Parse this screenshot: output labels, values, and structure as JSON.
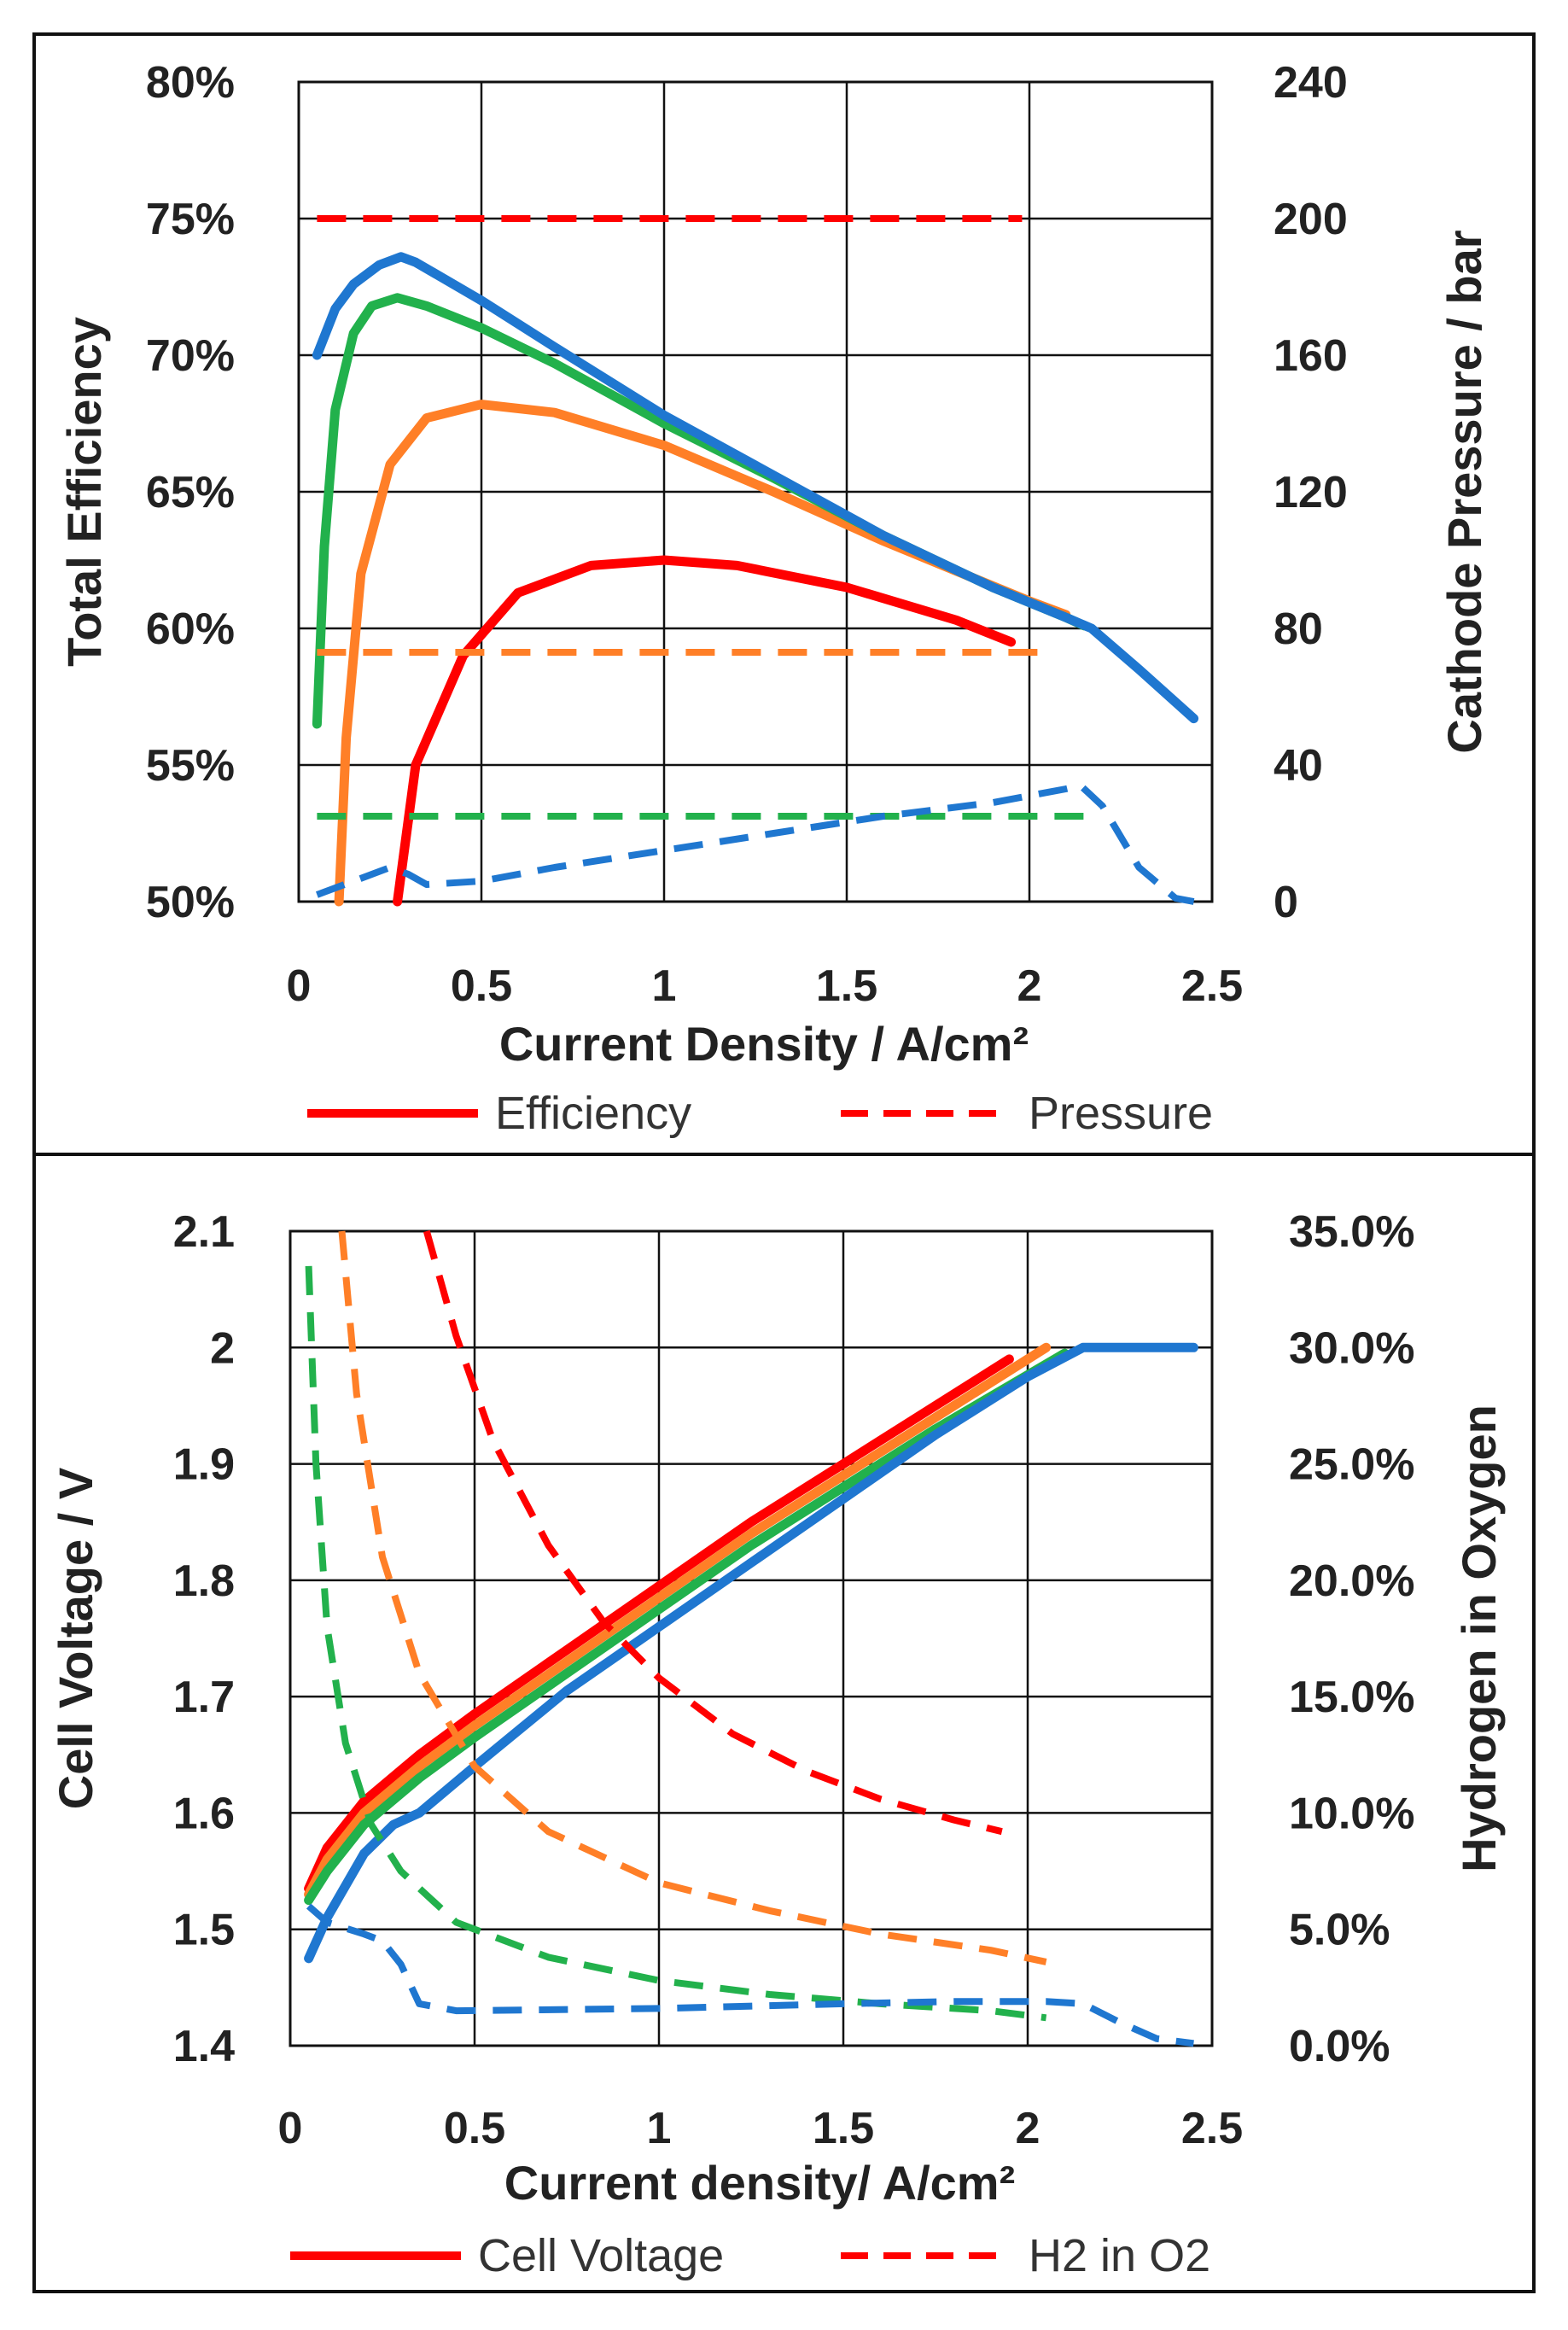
{
  "colors": {
    "red": "#ff0000",
    "orange": "#ff7f27",
    "green": "#22b14c",
    "blue": "#1f77d0",
    "frame": "#111111",
    "grid": "#111111"
  },
  "chart_data": [
    {
      "type": "line",
      "xlabel": "Current Density / A/cm²",
      "ylabel": "Total Efficiency",
      "y2label": "Cathode Pressure / bar",
      "xlim": [
        0,
        2.5
      ],
      "ylim": [
        50,
        80
      ],
      "y2lim": [
        0,
        240
      ],
      "xticks": [
        "0",
        "0.5",
        "1",
        "1.5",
        "2",
        "2.5"
      ],
      "yticks": [
        "50%",
        "55%",
        "60%",
        "65%",
        "70%",
        "75%",
        "80%"
      ],
      "y2ticks": [
        "0",
        "40",
        "80",
        "120",
        "160",
        "200",
        "240"
      ],
      "grid": true,
      "legend": {
        "position": "bottom",
        "solid_label": "Efficiency",
        "dashed_label": "Pressure"
      },
      "series": [
        {
          "axis": "left",
          "style": "solid",
          "color": "red",
          "points": [
            [
              0.27,
              50
            ],
            [
              0.32,
              55
            ],
            [
              0.45,
              59
            ],
            [
              0.6,
              61.3
            ],
            [
              0.8,
              62.3
            ],
            [
              1.0,
              62.5
            ],
            [
              1.2,
              62.3
            ],
            [
              1.5,
              61.5
            ],
            [
              1.8,
              60.3
            ],
            [
              1.95,
              59.5
            ]
          ]
        },
        {
          "axis": "left",
          "style": "solid",
          "color": "orange",
          "points": [
            [
              0.11,
              50
            ],
            [
              0.13,
              56
            ],
            [
              0.17,
              62
            ],
            [
              0.25,
              66
            ],
            [
              0.35,
              67.7
            ],
            [
              0.5,
              68.2
            ],
            [
              0.7,
              67.9
            ],
            [
              1.0,
              66.7
            ],
            [
              1.3,
              65
            ],
            [
              1.6,
              63.2
            ],
            [
              2.0,
              61.0
            ],
            [
              2.1,
              60.5
            ]
          ]
        },
        {
          "axis": "left",
          "style": "solid",
          "color": "green",
          "points": [
            [
              0.05,
              56.5
            ],
            [
              0.07,
              63
            ],
            [
              0.1,
              68
            ],
            [
              0.15,
              70.8
            ],
            [
              0.2,
              71.8
            ],
            [
              0.27,
              72.1
            ],
            [
              0.35,
              71.8
            ],
            [
              0.5,
              71.0
            ],
            [
              0.7,
              69.7
            ],
            [
              1.0,
              67.5
            ],
            [
              1.3,
              65.5
            ],
            [
              1.6,
              63.4
            ],
            [
              1.9,
              61.5
            ],
            [
              2.1,
              60.4
            ],
            [
              2.15,
              60.1
            ]
          ]
        },
        {
          "axis": "left",
          "style": "solid",
          "color": "blue",
          "points": [
            [
              0.05,
              70
            ],
            [
              0.1,
              71.7
            ],
            [
              0.15,
              72.6
            ],
            [
              0.22,
              73.3
            ],
            [
              0.28,
              73.6
            ],
            [
              0.32,
              73.4
            ],
            [
              0.5,
              72
            ],
            [
              0.7,
              70.3
            ],
            [
              1.0,
              67.8
            ],
            [
              1.3,
              65.6
            ],
            [
              1.6,
              63.4
            ],
            [
              1.9,
              61.5
            ],
            [
              2.1,
              60.4
            ],
            [
              2.17,
              60
            ],
            [
              2.3,
              58.5
            ],
            [
              2.45,
              56.7
            ]
          ]
        },
        {
          "axis": "right",
          "style": "dashed",
          "color": "red",
          "points": [
            [
              0.05,
              200
            ],
            [
              1.98,
              200
            ]
          ]
        },
        {
          "axis": "right",
          "style": "dashed",
          "color": "orange",
          "points": [
            [
              0.05,
              73
            ],
            [
              2.05,
              73
            ]
          ]
        },
        {
          "axis": "right",
          "style": "dashed",
          "color": "green",
          "points": [
            [
              0.05,
              25
            ],
            [
              2.15,
              25
            ]
          ]
        },
        {
          "axis": "right",
          "style": "dashed",
          "color": "blue",
          "points": [
            [
              0.05,
              2
            ],
            [
              0.15,
              6
            ],
            [
              0.25,
              10
            ],
            [
              0.3,
              8
            ],
            [
              0.35,
              5
            ],
            [
              0.5,
              6
            ],
            [
              0.7,
              10
            ],
            [
              1.0,
              15
            ],
            [
              1.3,
              20
            ],
            [
              1.6,
              25
            ],
            [
              1.9,
              29
            ],
            [
              2.1,
              33
            ],
            [
              2.14,
              34
            ],
            [
              2.2,
              28
            ],
            [
              2.3,
              10
            ],
            [
              2.4,
              1
            ],
            [
              2.45,
              0
            ]
          ]
        }
      ]
    },
    {
      "type": "line",
      "xlabel": "Current density/ A/cm²",
      "ylabel": "Cell Voltage / V",
      "y2label": "Hydrogen in Oxygen",
      "xlim": [
        0,
        2.5
      ],
      "ylim": [
        1.4,
        2.1
      ],
      "y2lim": [
        0,
        35
      ],
      "xticks": [
        "0",
        "0.5",
        "1",
        "1.5",
        "2",
        "2.5"
      ],
      "yticks": [
        "1.4",
        "1.5",
        "1.6",
        "1.7",
        "1.8",
        "1.9",
        "2",
        "2.1"
      ],
      "y2ticks": [
        "0.0%",
        "5.0%",
        "10.0%",
        "15.0%",
        "20.0%",
        "25.0%",
        "30.0%",
        "35.0%"
      ],
      "grid": true,
      "legend": {
        "position": "bottom",
        "solid_label": "Cell Voltage",
        "dashed_label": "H2 in O2"
      },
      "series": [
        {
          "axis": "left",
          "style": "solid",
          "color": "red",
          "points": [
            [
              0.05,
              1.535
            ],
            [
              0.1,
              1.57
            ],
            [
              0.2,
              1.61
            ],
            [
              0.35,
              1.65
            ],
            [
              0.5,
              1.685
            ],
            [
              0.75,
              1.74
            ],
            [
              1.0,
              1.795
            ],
            [
              1.25,
              1.85
            ],
            [
              1.5,
              1.9
            ],
            [
              1.75,
              1.95
            ],
            [
              1.95,
              1.99
            ]
          ]
        },
        {
          "axis": "left",
          "style": "solid",
          "color": "orange",
          "points": [
            [
              0.05,
              1.53
            ],
            [
              0.1,
              1.56
            ],
            [
              0.2,
              1.6
            ],
            [
              0.35,
              1.64
            ],
            [
              0.5,
              1.675
            ],
            [
              0.75,
              1.73
            ],
            [
              1.0,
              1.785
            ],
            [
              1.25,
              1.84
            ],
            [
              1.5,
              1.89
            ],
            [
              1.75,
              1.94
            ],
            [
              2.05,
              2.0
            ]
          ]
        },
        {
          "axis": "left",
          "style": "solid",
          "color": "green",
          "points": [
            [
              0.05,
              1.525
            ],
            [
              0.1,
              1.55
            ],
            [
              0.2,
              1.59
            ],
            [
              0.35,
              1.63
            ],
            [
              0.5,
              1.665
            ],
            [
              0.75,
              1.72
            ],
            [
              1.0,
              1.775
            ],
            [
              1.25,
              1.83
            ],
            [
              1.5,
              1.88
            ],
            [
              1.75,
              1.93
            ],
            [
              2.1,
              1.995
            ]
          ]
        },
        {
          "axis": "left",
          "style": "solid",
          "color": "blue",
          "points": [
            [
              0.05,
              1.475
            ],
            [
              0.1,
              1.51
            ],
            [
              0.2,
              1.565
            ],
            [
              0.28,
              1.59
            ],
            [
              0.35,
              1.6
            ],
            [
              0.5,
              1.64
            ],
            [
              0.75,
              1.705
            ],
            [
              1.0,
              1.76
            ],
            [
              1.25,
              1.815
            ],
            [
              1.5,
              1.87
            ],
            [
              1.75,
              1.925
            ],
            [
              2.0,
              1.975
            ],
            [
              2.15,
              2.0
            ],
            [
              2.45,
              2.0
            ]
          ]
        },
        {
          "axis": "right",
          "style": "dashed",
          "color": "red",
          "points": [
            [
              0.37,
              35
            ],
            [
              0.45,
              30.5
            ],
            [
              0.55,
              26
            ],
            [
              0.7,
              21.5
            ],
            [
              0.85,
              18.2
            ],
            [
              1.0,
              15.8
            ],
            [
              1.2,
              13.4
            ],
            [
              1.4,
              11.8
            ],
            [
              1.6,
              10.6
            ],
            [
              1.8,
              9.7
            ],
            [
              1.93,
              9.2
            ]
          ]
        },
        {
          "axis": "right",
          "style": "dashed",
          "color": "orange",
          "points": [
            [
              0.14,
              35
            ],
            [
              0.18,
              28
            ],
            [
              0.25,
              21
            ],
            [
              0.35,
              16
            ],
            [
              0.5,
              12
            ],
            [
              0.7,
              9.2
            ],
            [
              1.0,
              7
            ],
            [
              1.3,
              5.8
            ],
            [
              1.6,
              4.8
            ],
            [
              1.9,
              4.1
            ],
            [
              2.05,
              3.6
            ]
          ]
        },
        {
          "axis": "right",
          "style": "dashed",
          "color": "green",
          "points": [
            [
              0.05,
              33.5
            ],
            [
              0.07,
              25
            ],
            [
              0.1,
              18
            ],
            [
              0.15,
              13
            ],
            [
              0.22,
              9.5
            ],
            [
              0.3,
              7.5
            ],
            [
              0.45,
              5.3
            ],
            [
              0.7,
              3.8
            ],
            [
              1.0,
              2.8
            ],
            [
              1.3,
              2.2
            ],
            [
              1.6,
              1.8
            ],
            [
              1.9,
              1.5
            ],
            [
              2.05,
              1.2
            ]
          ]
        },
        {
          "axis": "right",
          "style": "dashed",
          "color": "blue",
          "points": [
            [
              0.05,
              6
            ],
            [
              0.1,
              5.3
            ],
            [
              0.2,
              4.8
            ],
            [
              0.25,
              4.5
            ],
            [
              0.3,
              3.5
            ],
            [
              0.35,
              1.8
            ],
            [
              0.45,
              1.5
            ],
            [
              1.0,
              1.6
            ],
            [
              1.5,
              1.8
            ],
            [
              1.8,
              1.9
            ],
            [
              2.05,
              1.9
            ],
            [
              2.15,
              1.8
            ],
            [
              2.25,
              1
            ],
            [
              2.35,
              0.3
            ],
            [
              2.45,
              0.1
            ]
          ]
        }
      ]
    }
  ]
}
